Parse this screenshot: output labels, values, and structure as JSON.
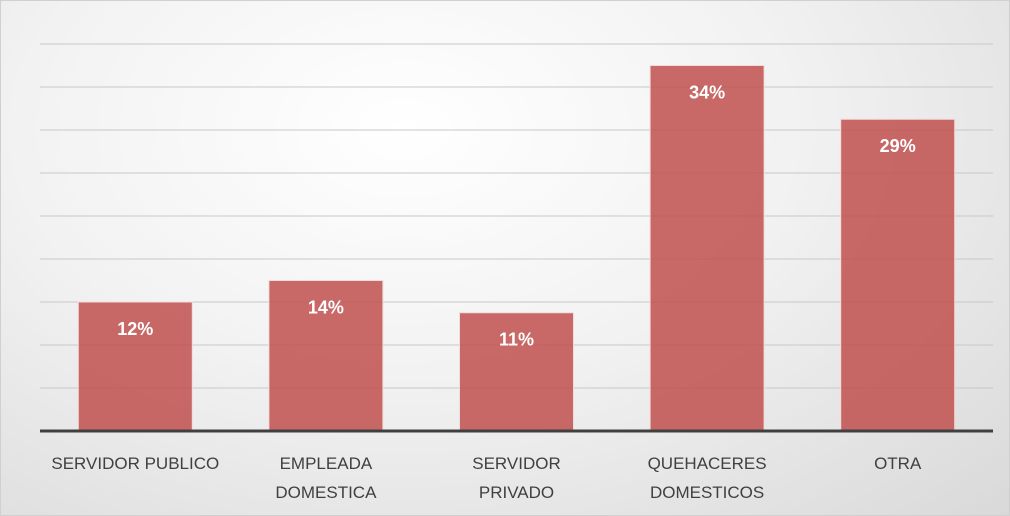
{
  "chart_data": {
    "type": "bar",
    "categories": [
      "SERVIDOR PUBLICO",
      "EMPLEADA\nDOMESTICA",
      "SERVIDOR\nPRIVADO",
      "QUEHACERES\nDOMESTICOS",
      "OTRA"
    ],
    "values": [
      12,
      14,
      11,
      34,
      29
    ],
    "value_labels": [
      "12%",
      "14%",
      "11%",
      "34%",
      "29%"
    ],
    "color": "#c0504d",
    "ylim": [
      0,
      36
    ],
    "yticks": [
      0,
      4,
      8,
      12,
      16,
      20,
      24,
      28,
      32,
      36
    ],
    "grid": true
  }
}
